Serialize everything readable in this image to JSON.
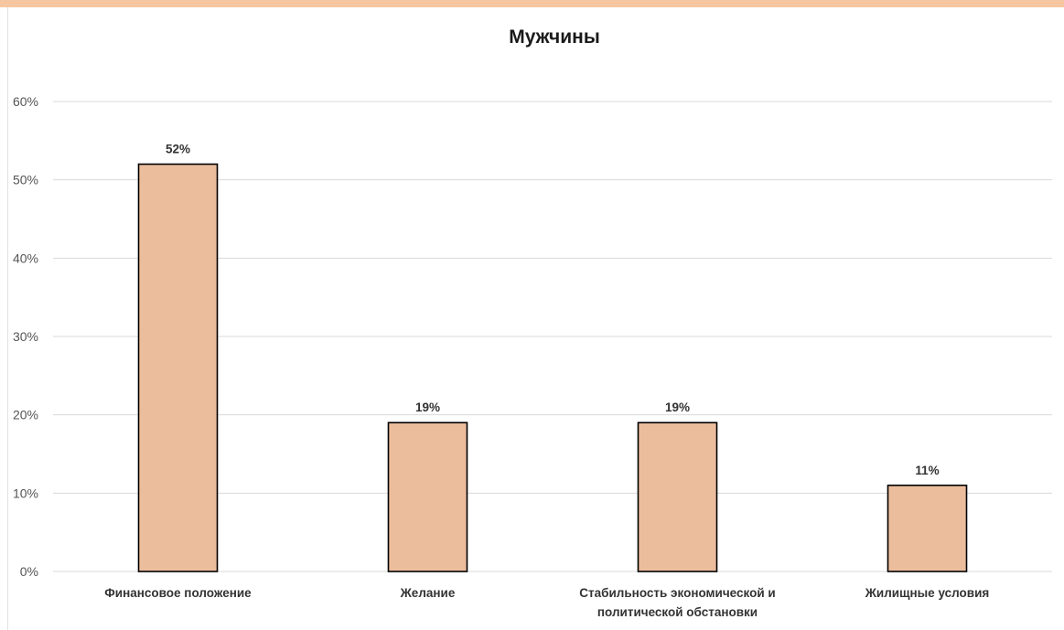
{
  "chart_data": {
    "type": "bar",
    "title": "Мужчины",
    "categories": [
      [
        "Финансовое положение"
      ],
      [
        "Желание"
      ],
      [
        "Стабильность экономической и",
        "политической обстановки"
      ],
      [
        "Жилищные условия"
      ]
    ],
    "values": [
      52,
      19,
      19,
      11
    ],
    "data_labels": [
      "52%",
      "19%",
      "19%",
      "11%"
    ],
    "ylim": [
      0,
      60
    ],
    "yticks": [
      0,
      10,
      20,
      30,
      40,
      50,
      60
    ],
    "ytick_labels": [
      "0%",
      "10%",
      "20%",
      "30%",
      "40%",
      "50%",
      "60%"
    ],
    "grid": true,
    "legend": "none",
    "bar_color": "#ebbd9c",
    "bar_edge_color": "#000000"
  }
}
